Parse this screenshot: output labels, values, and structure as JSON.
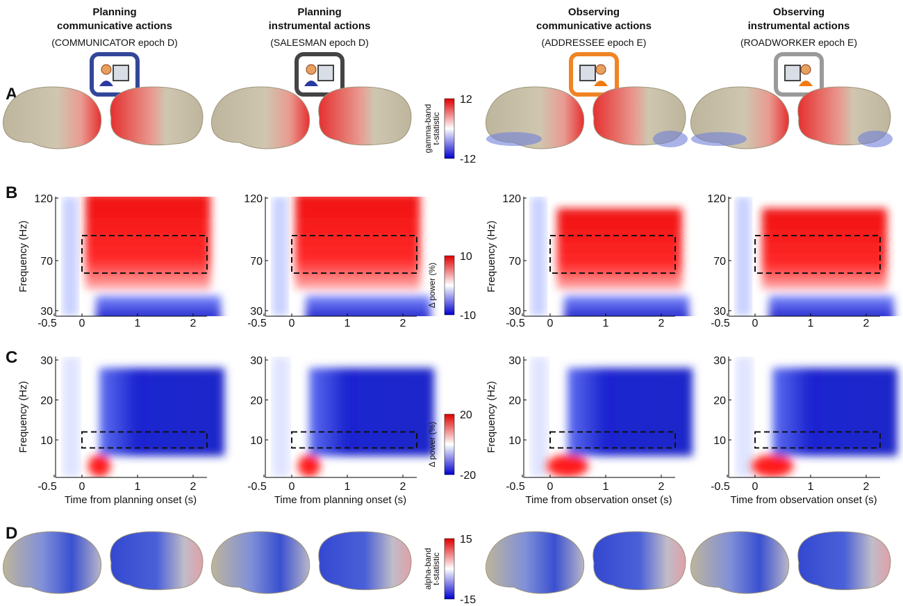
{
  "panel_letters": [
    "A",
    "B",
    "C",
    "D"
  ],
  "columns": [
    {
      "heading": [
        "Planning",
        "communicative actions"
      ],
      "subtitle": "(COMMUNICATOR epoch D)",
      "x_label": "Time from planning onset (s)"
    },
    {
      "heading": [
        "Planning",
        "instrumental actions"
      ],
      "subtitle": "(SALESMAN epoch D)",
      "x_label": "Time from planning onset (s)"
    },
    {
      "heading": [
        "Observing",
        "communicative actions"
      ],
      "subtitle": "(ADDRESSEE epoch E)",
      "x_label": "Time from observation onset (s)"
    },
    {
      "heading": [
        "Observing",
        "instrumental actions"
      ],
      "subtitle": "(ROADWORKER epoch E)",
      "x_label": "Time from observation onset (s)"
    }
  ],
  "panel_b": {
    "y_label": "Frequency (Hz)",
    "yticks": [
      120,
      70,
      30
    ],
    "xticks": [
      -0.5,
      0,
      1,
      2
    ]
  },
  "panel_c": {
    "y_label": "Frequency (Hz)",
    "yticks": [
      30,
      20,
      10
    ],
    "xticks": [
      -0.5,
      0,
      1,
      2
    ]
  },
  "colorbars": [
    {
      "label": [
        "gamma-band",
        "t-statistic"
      ],
      "max": 12,
      "min": -12
    },
    {
      "label": [
        "Δ power (%)"
      ],
      "max": 10,
      "min": -10
    },
    {
      "label": [
        "Δ power (%)"
      ],
      "max": 20,
      "min": -20
    },
    {
      "label": [
        "alpha-band",
        "t-statistic"
      ],
      "max": 15,
      "min": -15
    }
  ]
}
